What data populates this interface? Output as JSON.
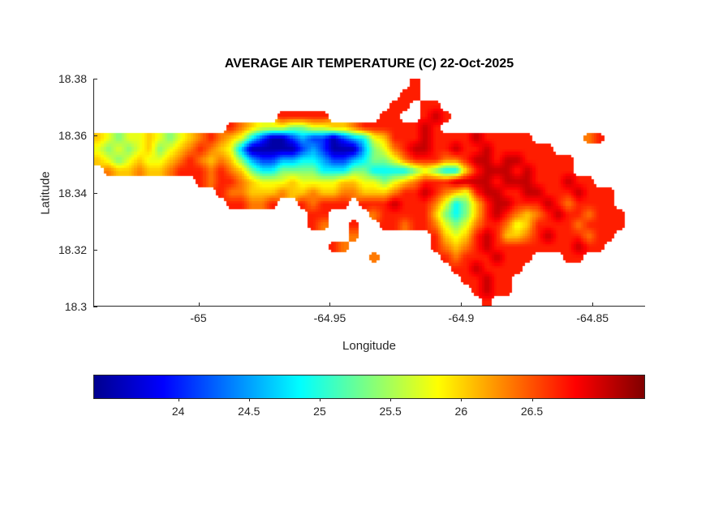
{
  "figure": {
    "background_color": "#ffffff",
    "axis_color": "#262626"
  },
  "chart_data": {
    "type": "heatmap",
    "title": "AVERAGE AIR TEMPERATURE (C) 22-Oct-2025",
    "xlabel": "Longitude",
    "ylabel": "Latitude",
    "x_range": [
      -65.04,
      -64.83
    ],
    "y_range": [
      18.3,
      18.38
    ],
    "x_ticks": [
      {
        "value": -65,
        "label": "-65"
      },
      {
        "value": -64.95,
        "label": "-64.95"
      },
      {
        "value": -64.9,
        "label": "-64.9"
      },
      {
        "value": -64.85,
        "label": "-64.85"
      }
    ],
    "y_ticks": [
      {
        "value": 18.3,
        "label": "18.3"
      },
      {
        "value": 18.32,
        "label": "18.32"
      },
      {
        "value": 18.34,
        "label": "18.34"
      },
      {
        "value": 18.36,
        "label": "18.36"
      },
      {
        "value": 18.38,
        "label": "18.38"
      }
    ],
    "colormap": {
      "name": "jet",
      "stops": [
        {
          "pos": 0,
          "color": "#00008f"
        },
        {
          "pos": 0.125,
          "color": "#0000ff"
        },
        {
          "pos": 0.375,
          "color": "#00ffff"
        },
        {
          "pos": 0.625,
          "color": "#ffff00"
        },
        {
          "pos": 0.875,
          "color": "#ff0000"
        },
        {
          "pos": 1,
          "color": "#800000"
        }
      ]
    },
    "colorbar": {
      "orientation": "horizontal",
      "value_range": [
        23.4,
        27.3
      ],
      "ticks": [
        {
          "value": 24,
          "label": "24"
        },
        {
          "value": 24.5,
          "label": "24.5"
        },
        {
          "value": 25,
          "label": "25"
        },
        {
          "value": 25.5,
          "label": "25.5"
        },
        {
          "value": 26,
          "label": "26"
        },
        {
          "value": 26.5,
          "label": "26.5"
        }
      ]
    },
    "grid": {
      "cols": 54,
      "rows": 21,
      "sea_char": ".",
      "value_map": {
        "0": 23.5,
        "1": 24.1,
        "2": 24.55,
        "3": 24.85,
        "4": 25.35,
        "5": 25.75,
        "6": 26.05,
        "7": 26.35,
        "8": 26.7,
        "9": 27.05
      },
      "rows_data": [
        "...............................8......................",
        "..............................88......................",
        ".............................88.88....................",
        "..................88888.....88..898...................",
        ".............876555445566788888898....................",
        "6545565456787653100121101235688898888988888.....78....",
        "545456456787652000001210002457899889889888888.........",
        "65456556787676421122332112344578887789989988888.......",
        ".7667667888787643344443334433334543368999898888.......",
        "..........878876555655556655456788899998999888988.....",
        "............877666766766776667889876589988998889888...",
        ".............88778..87888.8889888753468998889878888...",
        ".....................88....7888886434689876789887888..",
        ".....................87..8..887887545788756888878888..",
        ".........................7.......865689866789888788...",
        ".......................87........87678988888888988....",
        "...........................7......878889888...88......",
        "...................................8898888............",
        "....................................88988.............",
        ".....................................8988.............",
        "......................................8..............."
      ]
    }
  }
}
